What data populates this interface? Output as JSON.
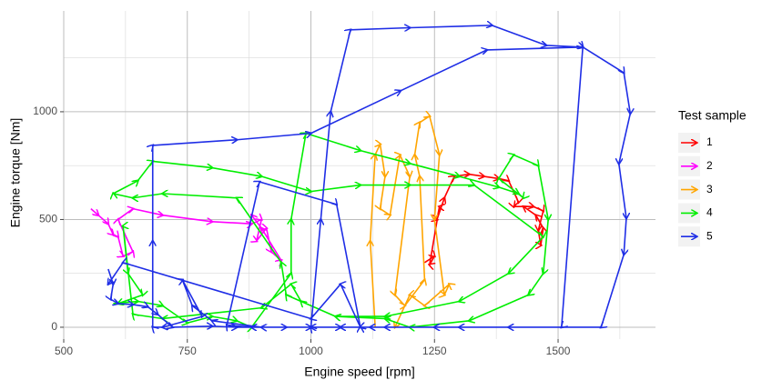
{
  "chart_data": {
    "type": "line",
    "x_label": "Engine speed [rpm]",
    "y_label": "Engine torque [Nm]",
    "xlim": [
      500,
      1697
    ],
    "ylim": [
      -55,
      1468
    ],
    "xticks": [
      500,
      750,
      1000,
      1250,
      1500
    ],
    "yticks": [
      0,
      500,
      1000
    ],
    "grid": true,
    "legend_title": "Test sample",
    "legend_position": "right",
    "series": [
      {
        "name": "1",
        "color": "#ff0000",
        "x": [
          1230,
          1250,
          1240,
          1260,
          1255,
          1270,
          1290,
          1320,
          1350,
          1380,
          1400,
          1420,
          1410,
          1450,
          1470,
          1460,
          1465,
          1470,
          1455,
          1430
        ],
        "values": [
          300,
          330,
          290,
          560,
          500,
          600,
          700,
          710,
          700,
          690,
          680,
          580,
          560,
          560,
          540,
          450,
          380,
          460,
          520,
          560
        ]
      },
      {
        "name": "2",
        "color": "#ff00ff",
        "x": [
          555,
          570,
          590,
          600,
          610,
          620,
          640,
          610,
          640,
          700,
          800,
          880,
          900,
          890,
          910,
          920,
          940,
          900,
          880
        ],
        "values": [
          550,
          520,
          480,
          430,
          420,
          330,
          350,
          500,
          550,
          520,
          490,
          480,
          500,
          400,
          460,
          350,
          310,
          460,
          520
        ]
      },
      {
        "name": "3",
        "color": "#ffa500",
        "x": [
          1130,
          1120,
          1130,
          1140,
          1150,
          1140,
          1160,
          1180,
          1200,
          1170,
          1190,
          1230,
          1220,
          1210,
          1220,
          1240,
          1260,
          1250,
          1270,
          1280,
          1230,
          1200,
          1170
        ],
        "values": [
          0,
          400,
          800,
          850,
          700,
          550,
          520,
          800,
          700,
          150,
          100,
          220,
          700,
          800,
          950,
          980,
          800,
          500,
          150,
          200,
          100,
          150,
          0
        ]
      },
      {
        "name": "4",
        "color": "#00ee00",
        "x": [
          600,
          650,
          700,
          750,
          800,
          850,
          880,
          960,
          960,
          990,
          1100,
          1200,
          1300,
          1380,
          1420,
          1430,
          1380,
          1410,
          1460,
          1480,
          1470,
          1440,
          1320,
          1200,
          1150,
          1050,
          950,
          940,
          850,
          700,
          640,
          600,
          650,
          680,
          800,
          900,
          1000,
          1100,
          1200,
          1330,
          1470,
          1400,
          1300,
          1150,
          1050,
          980,
          960,
          900,
          700,
          640,
          620,
          630,
          660,
          610
        ],
        "values": [
          110,
          120,
          100,
          20,
          50,
          30,
          0,
          250,
          500,
          900,
          820,
          760,
          700,
          650,
          620,
          600,
          690,
          800,
          750,
          500,
          250,
          150,
          30,
          0,
          40,
          50,
          150,
          300,
          600,
          620,
          600,
          620,
          680,
          770,
          740,
          700,
          630,
          660,
          660,
          660,
          420,
          250,
          120,
          50,
          50,
          120,
          200,
          90,
          40,
          60,
          470,
          250,
          150,
          110
        ]
      },
      {
        "name": "5",
        "color": "#1f2ee6",
        "x": [
          590,
          600,
          595,
          610,
          640,
          670,
          690,
          720,
          800,
          850,
          950,
          1000,
          1060,
          1100,
          1000,
          1020,
          1040,
          1080,
          1200,
          1366,
          1476,
          1550,
          1633,
          1646,
          1623,
          1638,
          1633,
          1587,
          1400,
          1250,
          1150,
          1060,
          900,
          800,
          760,
          740,
          780,
          700,
          680,
          680,
          680,
          850,
          1000,
          1181,
          1356,
          1550,
          1507,
          1300,
          1120,
          1000,
          880,
          830,
          896,
          1052,
          1100,
          1060,
          1000,
          620,
          590
        ],
        "values": [
          270,
          200,
          130,
          110,
          105,
          95,
          60,
          0,
          5,
          0,
          0,
          0,
          0,
          0,
          0,
          500,
          1000,
          1380,
          1390,
          1401,
          1308,
          1300,
          1181,
          992,
          759,
          506,
          338,
          0,
          0,
          0,
          0,
          0,
          0,
          30,
          100,
          220,
          50,
          0,
          0,
          400,
          844,
          870,
          900,
          1097,
          1287,
          1300,
          0,
          0,
          0,
          0,
          0,
          10,
          675,
          570,
          0,
          200,
          40,
          300,
          200
        ]
      }
    ]
  }
}
